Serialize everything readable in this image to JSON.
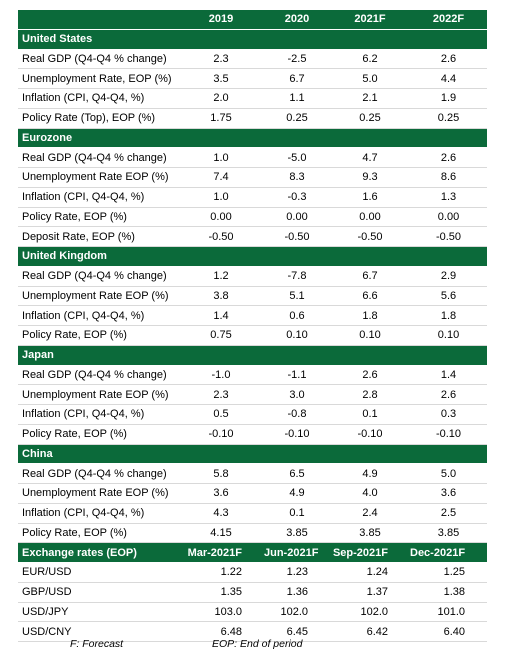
{
  "header": {
    "columns": [
      "2019",
      "2020",
      "2021F",
      "2022F"
    ]
  },
  "sections": [
    {
      "title": "United States",
      "rows": [
        {
          "label": "Real GDP (Q4-Q4 % change)",
          "values": [
            "2.3",
            "-2.5",
            "6.2",
            "2.6"
          ]
        },
        {
          "label": "Unemployment Rate, EOP (%)",
          "values": [
            "3.5",
            "6.7",
            "5.0",
            "4.4"
          ]
        },
        {
          "label": "Inflation (CPI, Q4-Q4, %)",
          "values": [
            "2.0",
            "1.1",
            "2.1",
            "1.9"
          ]
        },
        {
          "label": "Policy Rate (Top), EOP (%)",
          "values": [
            "1.75",
            "0.25",
            "0.25",
            "0.25"
          ]
        }
      ]
    },
    {
      "title": "Eurozone",
      "rows": [
        {
          "label": "Real GDP (Q4-Q4 % change)",
          "values": [
            "1.0",
            "-5.0",
            "4.7",
            "2.6"
          ]
        },
        {
          "label": "Unemployment Rate EOP (%)",
          "values": [
            "7.4",
            "8.3",
            "9.3",
            "8.6"
          ]
        },
        {
          "label": "Inflation (CPI, Q4-Q4, %)",
          "values": [
            "1.0",
            "-0.3",
            "1.6",
            "1.3"
          ]
        },
        {
          "label": "Policy Rate, EOP (%)",
          "values": [
            "0.00",
            "0.00",
            "0.00",
            "0.00"
          ]
        },
        {
          "label": "Deposit Rate, EOP (%)",
          "values": [
            "-0.50",
            "-0.50",
            "-0.50",
            "-0.50"
          ]
        }
      ]
    },
    {
      "title": "United Kingdom",
      "rows": [
        {
          "label": "Real GDP (Q4-Q4 % change)",
          "values": [
            "1.2",
            "-7.8",
            "6.7",
            "2.9"
          ]
        },
        {
          "label": "Unemployment Rate EOP (%)",
          "values": [
            "3.8",
            "5.1",
            "6.6",
            "5.6"
          ]
        },
        {
          "label": "Inflation (CPI, Q4-Q4, %)",
          "values": [
            "1.4",
            "0.6",
            "1.8",
            "1.8"
          ]
        },
        {
          "label": "Policy Rate, EOP (%)",
          "values": [
            "0.75",
            "0.10",
            "0.10",
            "0.10"
          ]
        }
      ]
    },
    {
      "title": "Japan",
      "rows": [
        {
          "label": "Real GDP (Q4-Q4 % change)",
          "values": [
            "-1.0",
            "-1.1",
            "2.6",
            "1.4"
          ]
        },
        {
          "label": "Unemployment Rate EOP (%)",
          "values": [
            "2.3",
            "3.0",
            "2.8",
            "2.6"
          ]
        },
        {
          "label": "Inflation (CPI, Q4-Q4, %)",
          "values": [
            "0.5",
            "-0.8",
            "0.1",
            "0.3"
          ]
        },
        {
          "label": "Policy Rate, EOP (%)",
          "values": [
            "-0.10",
            "-0.10",
            "-0.10",
            "-0.10"
          ]
        }
      ]
    },
    {
      "title": "China",
      "rows": [
        {
          "label": "Real GDP (Q4-Q4 % change)",
          "values": [
            "5.8",
            "6.5",
            "4.9",
            "5.0"
          ]
        },
        {
          "label": "Unemployment Rate EOP (%)",
          "values": [
            "3.6",
            "4.9",
            "4.0",
            "3.6"
          ]
        },
        {
          "label": "Inflation (CPI, Q4-Q4, %)",
          "values": [
            "4.3",
            "0.1",
            "2.4",
            "2.5"
          ]
        },
        {
          "label": "Policy Rate, EOP (%)",
          "values": [
            "4.15",
            "3.85",
            "3.85",
            "3.85"
          ]
        }
      ]
    }
  ],
  "exchange": {
    "title": "Exchange rates (EOP)",
    "columns": [
      "Mar-2021F",
      "Jun-2021F",
      "Sep-2021F",
      "Dec-2021F"
    ],
    "rows": [
      {
        "label": "EUR/USD",
        "values": [
          "1.22",
          "1.23",
          "1.24",
          "1.25"
        ]
      },
      {
        "label": "GBP/USD",
        "values": [
          "1.35",
          "1.36",
          "1.37",
          "1.38"
        ]
      },
      {
        "label": "USD/JPY",
        "values": [
          "103.0",
          "102.0",
          "102.0",
          "101.0"
        ]
      },
      {
        "label": "USD/CNY",
        "values": [
          "6.48",
          "6.45",
          "6.42",
          "6.40"
        ]
      }
    ]
  },
  "footnotes": [
    "F: Forecast",
    "EOP: End of period"
  ]
}
